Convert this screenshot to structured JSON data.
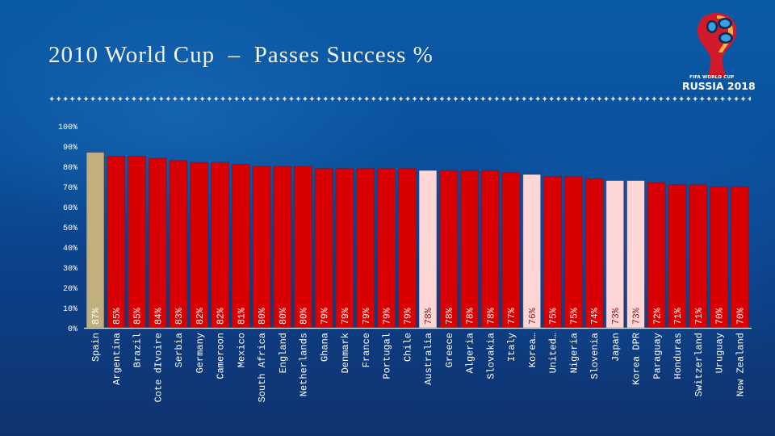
{
  "slide": {
    "title": "2010 World Cup  –  Passes Success %",
    "divider_glyph": "✦",
    "logo": {
      "caption_top": "FIFA WORLD CUP",
      "caption_bottom": "RUSSIA 2018"
    }
  },
  "colors": {
    "default_bar": "#d80000",
    "highlight_top": "#bfb07e",
    "highlight_light": "#ffd6d6",
    "axis_line": "#e8eef6",
    "label_on_dark": "#ffffff",
    "label_on_light": "#9a1a1a"
  },
  "chart_data": {
    "type": "bar",
    "title": "2010 World Cup – Passes Success %",
    "xlabel": "",
    "ylabel": "",
    "ylim": [
      0,
      100
    ],
    "yticks": [
      "0%",
      "10%",
      "20%",
      "30%",
      "40%",
      "50%",
      "60%",
      "70%",
      "80%",
      "90%",
      "100%"
    ],
    "grid": false,
    "legend": "none",
    "categories": [
      "Spain",
      "Argentina",
      "Brazil",
      "Cote dIvoire",
      "Serbia",
      "Germany",
      "Cameroon",
      "Mexico",
      "South Africa",
      "England",
      "Netherlands",
      "Ghana",
      "Denmark",
      "France",
      "Portugal",
      "Chile",
      "Australia",
      "Greece",
      "Algeria",
      "Slovakia",
      "Italy",
      "Korea…",
      "United…",
      "Nigeria",
      "Slovenia",
      "Japan",
      "Korea DPR",
      "Paraguay",
      "Honduras",
      "Switzerland",
      "Uruguay",
      "New Zealand"
    ],
    "values": [
      87,
      85,
      85,
      84,
      83,
      82,
      82,
      81,
      80,
      80,
      80,
      79,
      79,
      79,
      79,
      79,
      78,
      78,
      78,
      78,
      77,
      76,
      75,
      75,
      74,
      73,
      73,
      72,
      71,
      71,
      70,
      70
    ],
    "data_labels": [
      "87%",
      "85%",
      "85%",
      "84%",
      "83%",
      "82%",
      "82%",
      "81%",
      "80%",
      "80%",
      "80%",
      "79%",
      "79%",
      "79%",
      "79%",
      "79%",
      "78%",
      "78%",
      "78%",
      "78%",
      "77%",
      "76%",
      "75%",
      "75%",
      "74%",
      "73%",
      "73%",
      "72%",
      "71%",
      "71%",
      "70%",
      "70%"
    ],
    "bar_style": [
      "top",
      "default",
      "default",
      "default",
      "default",
      "default",
      "default",
      "default",
      "default",
      "default",
      "default",
      "default",
      "default",
      "default",
      "default",
      "default",
      "light",
      "default",
      "default",
      "default",
      "default",
      "light",
      "default",
      "default",
      "default",
      "light",
      "light",
      "default",
      "default",
      "default",
      "default",
      "default"
    ]
  }
}
